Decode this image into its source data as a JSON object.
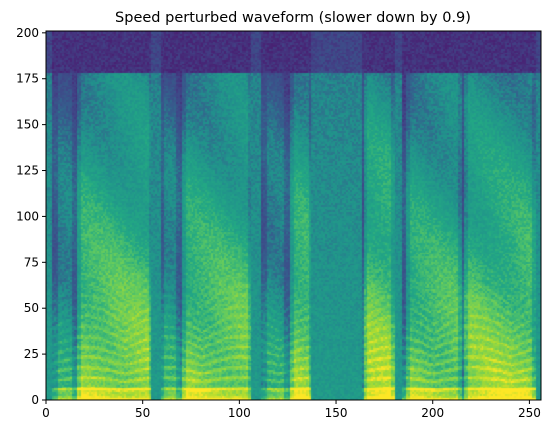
{
  "chart_data": {
    "type": "heatmap",
    "title": "Speed perturbed waveform (slower down by 0.9)",
    "xlabel": "",
    "ylabel": "",
    "xlim": [
      0,
      256
    ],
    "ylim": [
      0,
      201
    ],
    "x_ticks": [
      0,
      50,
      100,
      150,
      200,
      250
    ],
    "y_ticks": [
      0,
      25,
      50,
      75,
      100,
      125,
      150,
      175,
      200
    ],
    "colormap": "viridis",
    "grid": false,
    "frames": 256,
    "freq_bins": 201,
    "value_range": [
      0,
      1
    ],
    "band_cutoff_bin": 178,
    "above_cutoff_level": 0.12,
    "silent_gaps": [
      {
        "start": 0,
        "end": 3
      },
      {
        "start": 54,
        "end": 59
      },
      {
        "start": 106,
        "end": 111
      },
      {
        "start": 137,
        "end": 163
      },
      {
        "start": 180,
        "end": 184
      },
      {
        "start": 253,
        "end": 256
      }
    ],
    "voiced_segments": [
      {
        "start": 4,
        "end": 14,
        "level": 0.6
      },
      {
        "start": 16,
        "end": 54,
        "level": 0.82
      },
      {
        "start": 59,
        "end": 68,
        "level": 0.62
      },
      {
        "start": 70,
        "end": 105,
        "level": 0.8
      },
      {
        "start": 112,
        "end": 124,
        "level": 0.6
      },
      {
        "start": 126,
        "end": 137,
        "level": 0.82
      },
      {
        "start": 164,
        "end": 179,
        "level": 0.85
      },
      {
        "start": 186,
        "end": 214,
        "level": 0.78
      },
      {
        "start": 216,
        "end": 252,
        "level": 0.82
      }
    ],
    "harmonic_spacing_bins": 4.5,
    "colors": {
      "viridis_low": "#440154",
      "viridis_mid": "#21918c",
      "viridis_high": "#fde725"
    }
  }
}
